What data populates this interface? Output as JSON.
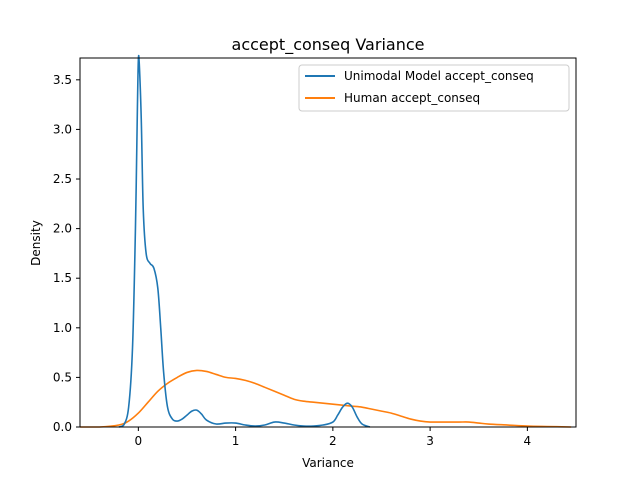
{
  "chart_data": {
    "type": "line",
    "title": "accept_conseq Variance",
    "xlabel": "Variance",
    "ylabel": "Density",
    "xlim": [
      -0.6,
      4.5
    ],
    "ylim": [
      0,
      3.72
    ],
    "x_ticks": [
      0,
      1,
      2,
      3,
      4
    ],
    "y_ticks": [
      0.0,
      0.5,
      1.0,
      1.5,
      2.0,
      2.5,
      3.0,
      3.5
    ],
    "grid": false,
    "legend_position": "top-right",
    "series": [
      {
        "name": "Unimodal Model accept_conseq",
        "color": "#1f77b4",
        "x": [
          -0.2,
          -0.15,
          -0.1,
          -0.06,
          -0.03,
          -0.01,
          0.0,
          0.01,
          0.03,
          0.05,
          0.08,
          0.12,
          0.16,
          0.2,
          0.23,
          0.26,
          0.3,
          0.35,
          0.4,
          0.45,
          0.5,
          0.55,
          0.6,
          0.65,
          0.7,
          0.8,
          0.9,
          1.0,
          1.1,
          1.2,
          1.3,
          1.4,
          1.5,
          1.6,
          1.7,
          1.8,
          1.9,
          2.0,
          2.05,
          2.1,
          2.15,
          2.2,
          2.25,
          2.3,
          2.38
        ],
        "y": [
          0.0,
          0.02,
          0.2,
          0.8,
          2.0,
          3.2,
          3.7,
          3.65,
          3.1,
          2.2,
          1.75,
          1.65,
          1.6,
          1.4,
          1.0,
          0.55,
          0.2,
          0.08,
          0.06,
          0.08,
          0.12,
          0.16,
          0.17,
          0.13,
          0.07,
          0.03,
          0.04,
          0.04,
          0.02,
          0.01,
          0.02,
          0.05,
          0.04,
          0.02,
          0.01,
          0.01,
          0.02,
          0.05,
          0.12,
          0.2,
          0.24,
          0.2,
          0.1,
          0.03,
          0.0
        ]
      },
      {
        "name": "Human accept_conseq",
        "color": "#ff7f0e",
        "x": [
          -0.6,
          -0.4,
          -0.2,
          -0.1,
          0.0,
          0.1,
          0.2,
          0.3,
          0.4,
          0.5,
          0.6,
          0.7,
          0.8,
          0.9,
          1.0,
          1.1,
          1.2,
          1.3,
          1.4,
          1.5,
          1.6,
          1.7,
          1.8,
          1.9,
          2.0,
          2.1,
          2.2,
          2.3,
          2.4,
          2.5,
          2.6,
          2.7,
          2.8,
          2.9,
          3.0,
          3.1,
          3.2,
          3.3,
          3.4,
          3.5,
          3.6,
          3.8,
          4.0,
          4.2,
          4.45
        ],
        "y": [
          0.0,
          0.0,
          0.02,
          0.06,
          0.14,
          0.25,
          0.36,
          0.44,
          0.5,
          0.55,
          0.57,
          0.56,
          0.53,
          0.5,
          0.49,
          0.47,
          0.44,
          0.4,
          0.36,
          0.32,
          0.28,
          0.26,
          0.25,
          0.24,
          0.23,
          0.22,
          0.21,
          0.2,
          0.18,
          0.16,
          0.14,
          0.11,
          0.08,
          0.06,
          0.05,
          0.05,
          0.05,
          0.05,
          0.05,
          0.04,
          0.03,
          0.02,
          0.01,
          0.005,
          0.0
        ]
      }
    ]
  }
}
